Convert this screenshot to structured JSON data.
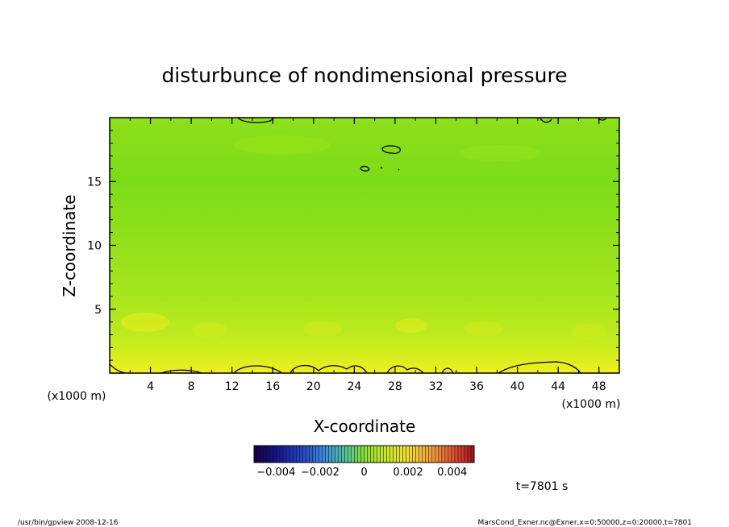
{
  "chart_data": {
    "type": "heatmap",
    "title": "disturbunce of nondimensional pressure",
    "xlabel": "X-coordinate",
    "ylabel": "Z-coordinate",
    "x_unit": "(x1000 m)",
    "x_range": [
      0,
      50
    ],
    "y_range": [
      0,
      20
    ],
    "x_ticks": [
      4,
      8,
      12,
      16,
      20,
      24,
      28,
      32,
      36,
      40,
      44,
      48
    ],
    "y_ticks": [
      5,
      10,
      15
    ],
    "field": {
      "description_levels": "bands of value by height",
      "rows": [
        {
          "z": 0.5,
          "value": 0.0016
        },
        {
          "z": 1.5,
          "value": 0.0013
        },
        {
          "z": 2.5,
          "value": 0.001
        },
        {
          "z": 3.5,
          "value": 0.0008
        },
        {
          "z": 5.0,
          "value": 0.0006
        },
        {
          "z": 7.0,
          "value": 0.0005
        },
        {
          "z": 9.0,
          "value": 0.0004
        },
        {
          "z": 11.0,
          "value": 0.0003
        },
        {
          "z": 13.0,
          "value": 0.0002
        },
        {
          "z": 15.0,
          "value": 0.0001
        },
        {
          "z": 17.0,
          "value": 0.0002
        },
        {
          "z": 19.0,
          "value": 0.0003
        }
      ]
    },
    "colorbar": {
      "range": [
        -0.005,
        0.005
      ],
      "tick_labels": [
        "−0.004",
        "−0.002",
        "0",
        "0.002",
        "0.004"
      ],
      "tick_values": [
        -0.004,
        -0.002,
        0,
        0.002,
        0.004
      ]
    },
    "time_label": "t=7801 s"
  },
  "footer": {
    "left": "/usr/bin/gpview   2008-12-16",
    "right": "MarsCond_Exner.nc@Exner,x=0:50000,z=0:20000,t=7801"
  }
}
